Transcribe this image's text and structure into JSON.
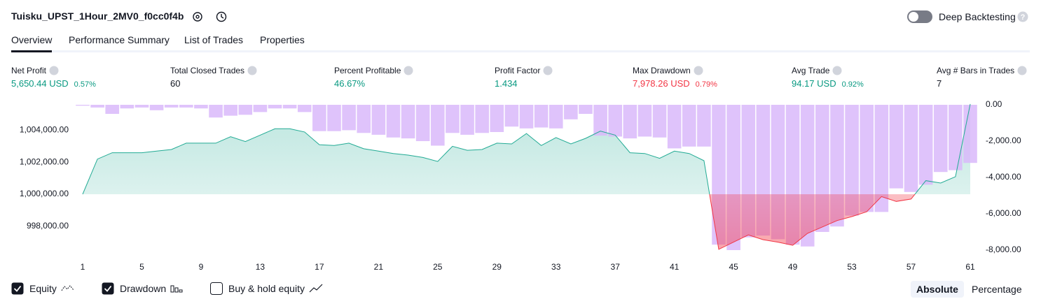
{
  "header": {
    "title": "Tuisku_UPST_1Hour_2MV0_f0cc0f4b",
    "deep_backtesting": "Deep Backtesting"
  },
  "tabs": [
    "Overview",
    "Performance Summary",
    "List of Trades",
    "Properties"
  ],
  "metrics": [
    {
      "label": "Net Profit",
      "value": "5,650.44 USD",
      "change": "0.57%",
      "color": "#089981"
    },
    {
      "label": "Total Closed Trades",
      "value": "60",
      "color": "#131722"
    },
    {
      "label": "Percent Profitable",
      "value": "46.67%",
      "color": "#089981"
    },
    {
      "label": "Profit Factor",
      "value": "1.434",
      "color": "#089981"
    },
    {
      "label": "Max Drawdown",
      "value": "7,978.26 USD",
      "change": "0.79%",
      "color": "#f23645"
    },
    {
      "label": "Avg Trade",
      "value": "94.17 USD",
      "change": "0.92%",
      "color": "#089981"
    },
    {
      "label": "Avg # Bars in Trades",
      "value": "7",
      "color": "#131722"
    }
  ],
  "chart_data": {
    "type": "equity-drawdown",
    "x": [
      1,
      2,
      3,
      4,
      5,
      6,
      7,
      8,
      9,
      10,
      11,
      12,
      13,
      14,
      15,
      16,
      17,
      18,
      19,
      20,
      21,
      22,
      23,
      24,
      25,
      26,
      27,
      28,
      29,
      30,
      31,
      32,
      33,
      34,
      35,
      36,
      37,
      38,
      39,
      40,
      41,
      42,
      43,
      44,
      45,
      46,
      47,
      48,
      49,
      50,
      51,
      52,
      53,
      54,
      55,
      56,
      57,
      58,
      59,
      60,
      61
    ],
    "xlim": [
      1,
      61
    ],
    "xticks": [
      1,
      5,
      9,
      13,
      17,
      21,
      25,
      29,
      33,
      37,
      41,
      45,
      49,
      53,
      57,
      61
    ],
    "series": [
      {
        "name": "Equity",
        "checked": true,
        "color": "#22ab94",
        "color_below": "#f23645",
        "values": [
          1000000,
          1002200,
          1002600,
          1002600,
          1002600,
          1002700,
          1002800,
          1003200,
          1003200,
          1003200,
          1003600,
          1003300,
          1003700,
          1004100,
          1004100,
          1003900,
          1003100,
          1003050,
          1003200,
          1002850,
          1002700,
          1002550,
          1002450,
          1002300,
          1002050,
          1003000,
          1002750,
          1002800,
          1003200,
          1003150,
          1003800,
          1003050,
          1003550,
          1003150,
          1003500,
          1003950,
          1003700,
          1002600,
          1002550,
          1002250,
          1002700,
          1002550,
          1002100,
          996550,
          997000,
          997450,
          997150,
          997000,
          996800,
          997550,
          997950,
          998350,
          998600,
          998900,
          999850,
          999550,
          999700,
          1000850,
          1000700,
          1001100,
          1005650
        ]
      },
      {
        "name": "Drawdown",
        "checked": true,
        "type": "bar",
        "axis": "y2",
        "color": "#d9b8fa",
        "values": [
          -50,
          -150,
          -500,
          -200,
          -150,
          -300,
          -150,
          -150,
          -200,
          -700,
          -600,
          -550,
          -400,
          -200,
          -200,
          -400,
          -1450,
          -1450,
          -1400,
          -1550,
          -1650,
          -1800,
          -1850,
          -2000,
          -2250,
          -1550,
          -1650,
          -1550,
          -1500,
          -1200,
          -1300,
          -1250,
          -1300,
          -800,
          -500,
          -1700,
          -1750,
          -1850,
          -1750,
          -1800,
          -2400,
          -2300,
          -2300,
          -7700,
          -8000,
          -7300,
          -7200,
          -7400,
          -7700,
          -7800,
          -7000,
          -6700,
          -6100,
          -5900,
          -5900,
          -4600,
          -4800,
          -4400,
          -3700,
          -3600,
          -3200
        ]
      }
    ],
    "ylim": [
      996500,
      1005600
    ],
    "yticks": [
      {
        "value": 998000,
        "label": "998,000.00"
      },
      {
        "value": 1000000,
        "label": "1,000,000.00"
      },
      {
        "value": 1002000,
        "label": "1,002,000.00"
      },
      {
        "value": 1004000,
        "label": "1,004,000.00"
      }
    ],
    "y2lim": [
      -8000,
      0
    ],
    "y2ticks": [
      {
        "value": -8000,
        "label": "-8,000.00"
      },
      {
        "value": -6000,
        "label": "-6,000.00"
      },
      {
        "value": -4000,
        "label": "-4,000.00"
      },
      {
        "value": -2000,
        "label": "-2,000.00"
      },
      {
        "value": 0,
        "label": "0.00"
      }
    ]
  },
  "extra_toggle": {
    "name": "Buy & hold equity",
    "checked": false
  },
  "scale_buttons": [
    "Absolute",
    "Percentage"
  ]
}
